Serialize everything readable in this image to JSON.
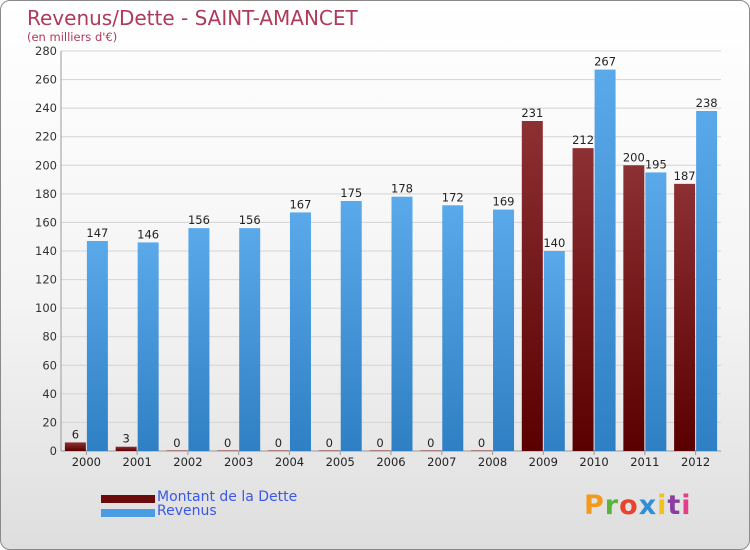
{
  "title": "Revenus/Dette - SAINT-AMANCET",
  "subtitle": "(en milliers d'€)",
  "logo": "Proxiti",
  "colors": {
    "debt_top": "#8c3033",
    "debt_bottom": "#5a0000",
    "revenue_top": "#5aa9ea",
    "revenue_bottom": "#2f7fc4",
    "title": "#b03a5b",
    "legend_text": "#3b57e6"
  },
  "chart_data": {
    "type": "bar",
    "categories": [
      "2000",
      "2001",
      "2002",
      "2003",
      "2004",
      "2005",
      "2006",
      "2007",
      "2008",
      "2009",
      "2010",
      "2011",
      "2012"
    ],
    "series": [
      {
        "name": "Montant de la Dette",
        "values": [
          6,
          3,
          0,
          0,
          0,
          0,
          0,
          0,
          0,
          231,
          212,
          200,
          187
        ]
      },
      {
        "name": "Revenus",
        "values": [
          147,
          146,
          156,
          156,
          167,
          175,
          178,
          172,
          169,
          140,
          267,
          195,
          238
        ]
      }
    ],
    "ylim": [
      0,
      280
    ],
    "yticks": [
      0,
      20,
      40,
      60,
      80,
      100,
      120,
      140,
      160,
      180,
      200,
      220,
      240,
      260,
      280
    ],
    "grid": true,
    "legend_position": "bottom-left"
  }
}
